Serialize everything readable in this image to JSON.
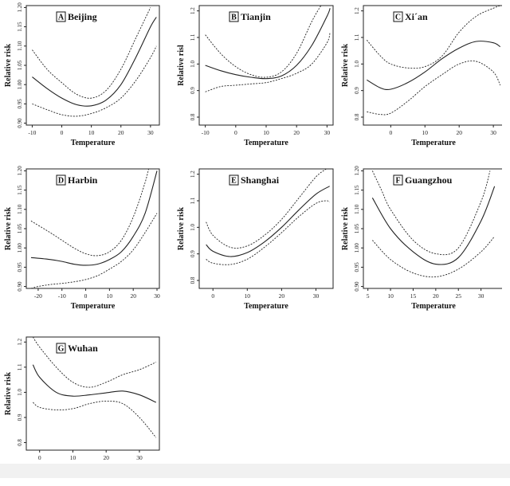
{
  "chart_data": [
    {
      "type": "line",
      "panel_letter": "A",
      "title": "Beijing",
      "xlabel": "Temperature",
      "ylabel": "Relative risk",
      "xlim": [
        -12,
        33
      ],
      "ylim": [
        0.895,
        1.205
      ],
      "xticks": [
        -10,
        0,
        10,
        20,
        30
      ],
      "xtick_labels": [
        "-10",
        "0",
        "10",
        "20",
        "30"
      ],
      "yticks": [
        0.9,
        0.95,
        1.0,
        1.05,
        1.1,
        1.15,
        1.2
      ],
      "ytick_labels": [
        "0.90",
        "0.95",
        "1.00",
        "1.05",
        "1.10",
        "1.15",
        "1.20"
      ],
      "series": [
        {
          "role": "upper",
          "style": "dashed",
          "x": [
            -10,
            -5,
            0,
            5,
            10,
            15,
            20,
            25,
            30
          ],
          "y": [
            1.09,
            1.04,
            1.005,
            0.975,
            0.965,
            0.985,
            1.04,
            1.12,
            1.2
          ]
        },
        {
          "role": "estimate",
          "style": "solid",
          "x": [
            -10,
            -5,
            0,
            5,
            10,
            15,
            20,
            25,
            30,
            32
          ],
          "y": [
            1.02,
            0.99,
            0.965,
            0.948,
            0.945,
            0.96,
            1.0,
            1.07,
            1.15,
            1.175
          ]
        },
        {
          "role": "lower",
          "style": "dashed",
          "x": [
            -10,
            -5,
            0,
            5,
            10,
            15,
            20,
            25,
            30,
            32
          ],
          "y": [
            0.95,
            0.935,
            0.922,
            0.918,
            0.925,
            0.94,
            0.965,
            1.01,
            1.07,
            1.1
          ]
        }
      ]
    },
    {
      "type": "line",
      "panel_letter": "B",
      "title": "Tianjin",
      "xlabel": "Temperature",
      "ylabel": "Relative risl",
      "xlim": [
        -12,
        32
      ],
      "ylim": [
        0.77,
        1.22
      ],
      "xticks": [
        -10,
        0,
        10,
        20,
        30
      ],
      "xtick_labels": [
        "-10",
        "0",
        "10",
        "20",
        "30"
      ],
      "yticks": [
        0.8,
        0.9,
        1.0,
        1.1,
        1.2
      ],
      "ytick_labels": [
        "0.8",
        "0.9",
        "1.0",
        "1.1",
        "1.2"
      ],
      "series": [
        {
          "role": "upper",
          "style": "dashed",
          "x": [
            -10,
            -5,
            0,
            5,
            10,
            15,
            20,
            25,
            28
          ],
          "y": [
            1.11,
            1.04,
            0.99,
            0.96,
            0.95,
            0.97,
            1.04,
            1.16,
            1.22
          ]
        },
        {
          "role": "estimate",
          "style": "solid",
          "x": [
            -10,
            -5,
            0,
            5,
            10,
            15,
            20,
            25,
            30,
            31
          ],
          "y": [
            0.995,
            0.975,
            0.96,
            0.95,
            0.945,
            0.955,
            0.995,
            1.07,
            1.18,
            1.21
          ]
        },
        {
          "role": "lower",
          "style": "dashed",
          "x": [
            -10,
            -5,
            0,
            5,
            10,
            15,
            20,
            25,
            30,
            31
          ],
          "y": [
            0.895,
            0.915,
            0.92,
            0.925,
            0.93,
            0.945,
            0.965,
            1.0,
            1.08,
            1.12
          ]
        }
      ]
    },
    {
      "type": "line",
      "panel_letter": "C",
      "title": "Xi´an",
      "xlabel": "Temperature",
      "ylabel": "Relative risk",
      "xlim": [
        -8,
        33
      ],
      "ylim": [
        0.77,
        1.22
      ],
      "xticks": [
        0,
        10,
        20,
        30
      ],
      "xtick_labels": [
        "0",
        "10",
        "20",
        "30"
      ],
      "yticks": [
        0.8,
        0.9,
        1.0,
        1.1,
        1.2
      ],
      "ytick_labels": [
        "0.8",
        "0.9",
        "1.0",
        "1.1",
        "1.2"
      ],
      "series": [
        {
          "role": "upper",
          "style": "dashed",
          "x": [
            -7,
            -3,
            0,
            5,
            10,
            15,
            20,
            25,
            30,
            32
          ],
          "y": [
            1.09,
            1.03,
            1.0,
            0.985,
            0.99,
            1.03,
            1.12,
            1.18,
            1.21,
            1.22
          ]
        },
        {
          "role": "estimate",
          "style": "solid",
          "x": [
            -7,
            -3,
            0,
            5,
            10,
            15,
            20,
            25,
            30,
            32
          ],
          "y": [
            0.94,
            0.91,
            0.905,
            0.93,
            0.97,
            1.02,
            1.06,
            1.085,
            1.08,
            1.065
          ]
        },
        {
          "role": "lower",
          "style": "dashed",
          "x": [
            -7,
            -3,
            0,
            5,
            10,
            15,
            20,
            25,
            30,
            32
          ],
          "y": [
            0.82,
            0.81,
            0.815,
            0.86,
            0.915,
            0.96,
            1.0,
            1.01,
            0.97,
            0.92
          ]
        }
      ]
    },
    {
      "type": "line",
      "panel_letter": "D",
      "title": "Harbin",
      "xlabel": "Temperature",
      "ylabel": "Relative risk",
      "xlim": [
        -25,
        31
      ],
      "ylim": [
        0.895,
        1.205
      ],
      "xticks": [
        -20,
        -10,
        0,
        10,
        20,
        30
      ],
      "xtick_labels": [
        "-20",
        "-10",
        "0",
        "10",
        "20",
        "30"
      ],
      "yticks": [
        0.9,
        0.95,
        1.0,
        1.05,
        1.1,
        1.15,
        1.2
      ],
      "ytick_labels": [
        "0.90",
        "0.95",
        "1.00",
        "1.05",
        "1.10",
        "1.15",
        "1.20"
      ],
      "series": [
        {
          "role": "upper",
          "style": "dashed",
          "x": [
            -23,
            -15,
            -10,
            -5,
            0,
            5,
            10,
            15,
            20,
            25,
            27
          ],
          "y": [
            1.07,
            1.04,
            1.02,
            1.0,
            0.985,
            0.98,
            0.99,
            1.02,
            1.08,
            1.17,
            1.22
          ]
        },
        {
          "role": "estimate",
          "style": "solid",
          "x": [
            -23,
            -15,
            -10,
            -5,
            0,
            5,
            10,
            15,
            20,
            25,
            30
          ],
          "y": [
            0.975,
            0.97,
            0.965,
            0.958,
            0.955,
            0.958,
            0.97,
            0.99,
            1.03,
            1.09,
            1.2
          ]
        },
        {
          "role": "lower",
          "style": "dashed",
          "x": [
            -23,
            -20,
            -15,
            -10,
            -5,
            0,
            5,
            10,
            15,
            20,
            25,
            30
          ],
          "y": [
            0.895,
            0.9,
            0.905,
            0.908,
            0.912,
            0.918,
            0.928,
            0.945,
            0.965,
            0.995,
            1.04,
            1.09
          ]
        }
      ]
    },
    {
      "type": "line",
      "panel_letter": "E",
      "title": "Shanghai",
      "xlabel": "Temperature",
      "ylabel": "Relative risk",
      "xlim": [
        -4,
        35
      ],
      "ylim": [
        0.77,
        1.22
      ],
      "xticks": [
        0,
        10,
        20,
        30
      ],
      "xtick_labels": [
        "0",
        "10",
        "20",
        "30"
      ],
      "yticks": [
        0.8,
        0.9,
        1.0,
        1.1,
        1.2
      ],
      "ytick_labels": [
        "0.8",
        "0.9",
        "1.0",
        "1.1",
        "1.2"
      ],
      "series": [
        {
          "role": "upper",
          "style": "dashed",
          "x": [
            -2,
            0,
            5,
            10,
            15,
            20,
            25,
            30,
            33
          ],
          "y": [
            1.02,
            0.97,
            0.925,
            0.93,
            0.97,
            1.03,
            1.11,
            1.19,
            1.22
          ]
        },
        {
          "role": "estimate",
          "style": "solid",
          "x": [
            -2,
            0,
            5,
            10,
            15,
            20,
            25,
            30,
            34
          ],
          "y": [
            0.935,
            0.91,
            0.89,
            0.905,
            0.945,
            1.0,
            1.065,
            1.125,
            1.155
          ]
        },
        {
          "role": "lower",
          "style": "dashed",
          "x": [
            -2,
            0,
            5,
            10,
            15,
            20,
            25,
            30,
            33,
            34
          ],
          "y": [
            0.88,
            0.865,
            0.86,
            0.88,
            0.925,
            0.98,
            1.04,
            1.09,
            1.1,
            1.095
          ]
        }
      ]
    },
    {
      "type": "line",
      "panel_letter": "F",
      "title": "Guangzhou",
      "xlabel": "Temperature",
      "ylabel": "Relative risk",
      "xlim": [
        4,
        35
      ],
      "ylim": [
        0.895,
        1.205
      ],
      "xticks": [
        5,
        10,
        15,
        20,
        25,
        30
      ],
      "xtick_labels": [
        "5",
        "10",
        "15",
        "20",
        "25",
        "30"
      ],
      "yticks": [
        0.9,
        0.95,
        1.0,
        1.05,
        1.1,
        1.15,
        1.2
      ],
      "ytick_labels": [
        "0.90",
        "0.95",
        "1.00",
        "1.05",
        "1.10",
        "1.15",
        "1.20"
      ],
      "series": [
        {
          "role": "upper",
          "style": "dashed",
          "x": [
            6,
            8,
            10,
            15,
            20,
            25,
            30,
            32
          ],
          "y": [
            1.2,
            1.15,
            1.1,
            1.02,
            0.985,
            1.0,
            1.12,
            1.2
          ]
        },
        {
          "role": "estimate",
          "style": "solid",
          "x": [
            6,
            10,
            15,
            20,
            25,
            30,
            33
          ],
          "y": [
            1.13,
            1.05,
            0.99,
            0.958,
            0.975,
            1.07,
            1.16
          ]
        },
        {
          "role": "lower",
          "style": "dashed",
          "x": [
            6,
            10,
            15,
            20,
            25,
            30,
            33
          ],
          "y": [
            1.02,
            0.97,
            0.935,
            0.925,
            0.945,
            0.99,
            1.03
          ]
        }
      ]
    },
    {
      "type": "line",
      "panel_letter": "G",
      "title": "Wuhan",
      "xlabel": "Temperature",
      "ylabel": "Relative risk",
      "xlim": [
        -4,
        36
      ],
      "ylim": [
        0.77,
        1.22
      ],
      "xticks": [
        0,
        10,
        20,
        30
      ],
      "xtick_labels": [
        "0",
        "10",
        "20",
        "30"
      ],
      "yticks": [
        0.8,
        0.9,
        1.0,
        1.1,
        1.2
      ],
      "ytick_labels": [
        "0.8",
        "0.9",
        "1.0",
        "1.1",
        "1.2"
      ],
      "series": [
        {
          "role": "upper",
          "style": "dashed",
          "x": [
            -2,
            0,
            5,
            10,
            15,
            20,
            25,
            30,
            35
          ],
          "y": [
            1.22,
            1.18,
            1.1,
            1.04,
            1.02,
            1.04,
            1.07,
            1.09,
            1.12
          ]
        },
        {
          "role": "estimate",
          "style": "solid",
          "x": [
            -2,
            0,
            5,
            10,
            15,
            20,
            25,
            30,
            35
          ],
          "y": [
            1.11,
            1.06,
            1.0,
            0.985,
            0.99,
            0.998,
            1.005,
            0.99,
            0.96
          ]
        },
        {
          "role": "lower",
          "style": "dashed",
          "x": [
            -2,
            0,
            5,
            10,
            15,
            20,
            25,
            30,
            35
          ],
          "y": [
            0.96,
            0.94,
            0.93,
            0.935,
            0.955,
            0.965,
            0.955,
            0.9,
            0.82
          ]
        }
      ]
    }
  ]
}
